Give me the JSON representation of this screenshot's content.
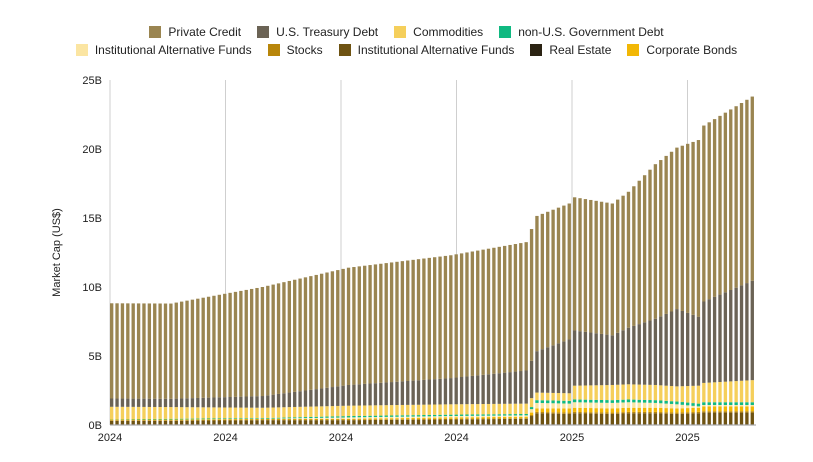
{
  "chart_data": {
    "type": "bar",
    "stacked": true,
    "title": "",
    "xlabel": "",
    "ylabel": "Market Cap (US$)",
    "ylim": [
      0,
      25
    ],
    "y_unit": "B",
    "y_ticks": [
      "0B",
      "5B",
      "10B",
      "15B",
      "20B",
      "25B"
    ],
    "x_tick_labels": [
      "2024",
      "2024",
      "2024",
      "2024",
      "2025",
      "2025"
    ],
    "grid": "vertical",
    "legend_position": "top",
    "legend_rows": [
      [
        "Private Credit",
        "U.S. Treasury Debt",
        "Commodities",
        "non-U.S. Government Debt"
      ],
      [
        "Institutional Alternative Funds",
        "Stocks",
        "Institutional Alternative Funds (2)",
        "Real Estate",
        "Corporate Bonds"
      ]
    ],
    "n_periods": 120,
    "anchor_index": [
      0,
      11,
      28,
      44,
      63,
      77,
      79,
      85,
      86,
      93,
      96,
      101,
      105,
      109,
      110,
      119
    ],
    "series": [
      {
        "name": "Real Estate",
        "color": "#2b2313",
        "values": [
          0.05,
          0.05,
          0.05,
          0.05,
          0.05,
          0.05,
          0.05,
          0.05,
          0.05,
          0.05,
          0.05,
          0.05,
          0.05,
          0.05,
          0.05,
          0.05
        ]
      },
      {
        "name": "Institutional Alternative Funds (2)",
        "color": "#6e5312",
        "values": [
          0.25,
          0.25,
          0.3,
          0.3,
          0.35,
          0.4,
          0.8,
          0.75,
          0.8,
          0.75,
          0.8,
          0.8,
          0.75,
          0.8,
          0.85,
          0.85
        ]
      },
      {
        "name": "Stocks",
        "color": "#b8860b",
        "values": [
          0.05,
          0.05,
          0.05,
          0.05,
          0.05,
          0.05,
          0.1,
          0.1,
          0.1,
          0.1,
          0.1,
          0.1,
          0.1,
          0.1,
          0.1,
          0.1
        ]
      },
      {
        "name": "Corporate Bonds",
        "color": "#f2b705",
        "values": [
          0.05,
          0.05,
          0.05,
          0.05,
          0.1,
          0.1,
          0.25,
          0.3,
          0.3,
          0.3,
          0.3,
          0.3,
          0.3,
          0.3,
          0.35,
          0.35
        ]
      },
      {
        "name": "Institutional Alternative Funds",
        "color": "#fbe5a2",
        "values": [
          0.0,
          0.0,
          0.0,
          0.1,
          0.1,
          0.1,
          0.4,
          0.35,
          0.4,
          0.4,
          0.4,
          0.35,
          0.3,
          0.1,
          0.1,
          0.1
        ]
      },
      {
        "name": "non-U.S. Government Debt",
        "color": "#10b981",
        "values": [
          0.02,
          0.05,
          0.05,
          0.1,
          0.1,
          0.1,
          0.2,
          0.2,
          0.2,
          0.2,
          0.2,
          0.2,
          0.2,
          0.2,
          0.2,
          0.2
        ]
      },
      {
        "name": "Commodities",
        "color": "#f5cf5b",
        "values": [
          0.9,
          0.85,
          0.75,
          0.75,
          0.75,
          0.75,
          0.55,
          0.55,
          1.0,
          1.1,
          1.1,
          1.1,
          1.1,
          1.3,
          1.4,
          1.6
        ]
      },
      {
        "name": "U.S. Treasury Debt",
        "color": "#6b6355",
        "values": [
          0.6,
          0.6,
          0.85,
          1.5,
          1.9,
          2.4,
          3.0,
          3.9,
          4.0,
          3.6,
          4.1,
          4.8,
          5.6,
          5.0,
          5.9,
          7.2
        ]
      },
      {
        "name": "Private Credit",
        "color": "#9a8551",
        "values": [
          6.9,
          6.9,
          7.9,
          8.5,
          8.9,
          9.3,
          9.8,
          9.85,
          9.65,
          9.55,
          9.85,
          11.2,
          11.7,
          12.8,
          12.75,
          13.35
        ]
      }
    ]
  },
  "legend_colors": {
    "Private Credit": "#9a8551",
    "U.S. Treasury Debt": "#6b6355",
    "Commodities": "#f5cf5b",
    "non-U.S. Government Debt": "#10b981",
    "Institutional Alternative Funds": "#fbe5a2",
    "Stocks": "#b8860b",
    "Institutional Alternative Funds (2)": "#6e5312",
    "Real Estate": "#2b2313",
    "Corporate Bonds": "#f2b705"
  },
  "legend_labels": {
    "Institutional Alternative Funds (2)": "Institutional Alternative Funds"
  }
}
